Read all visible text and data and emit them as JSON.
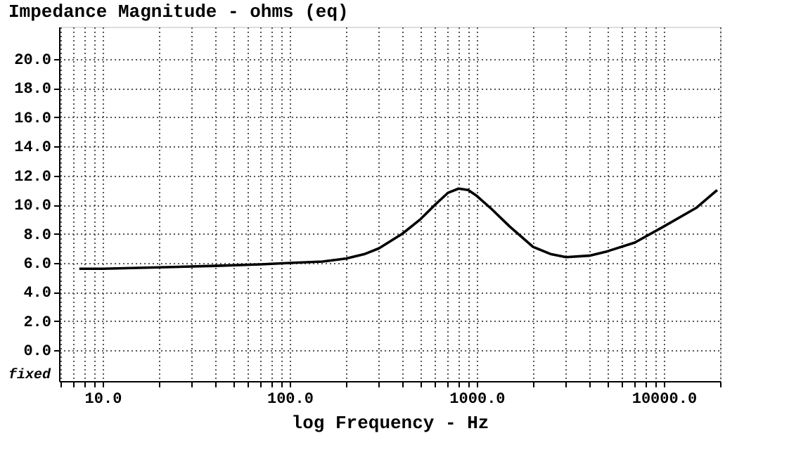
{
  "chart_data": {
    "type": "line",
    "title": "Impedance Magnitude - ohms (eq)",
    "xlabel": "log Frequency - Hz",
    "annotations": [
      "fixed"
    ],
    "log": "x",
    "grid": true,
    "line_style": "solid",
    "marker": "none",
    "xlim": [
      5.85,
      20000
    ],
    "ylim": [
      -2.1,
      22.2
    ],
    "xticks": [
      {
        "value": 6,
        "label": null
      },
      {
        "value": 7,
        "label": null
      },
      {
        "value": 8,
        "label": null
      },
      {
        "value": 9,
        "label": null
      },
      {
        "value": 10,
        "label": "10.0"
      },
      {
        "value": 20,
        "label": null
      },
      {
        "value": 30,
        "label": null
      },
      {
        "value": 40,
        "label": null
      },
      {
        "value": 50,
        "label": null
      },
      {
        "value": 60,
        "label": null
      },
      {
        "value": 70,
        "label": null
      },
      {
        "value": 80,
        "label": null
      },
      {
        "value": 90,
        "label": null
      },
      {
        "value": 100,
        "label": "100.0"
      },
      {
        "value": 200,
        "label": null
      },
      {
        "value": 300,
        "label": null
      },
      {
        "value": 400,
        "label": null
      },
      {
        "value": 500,
        "label": null
      },
      {
        "value": 600,
        "label": null
      },
      {
        "value": 700,
        "label": null
      },
      {
        "value": 800,
        "label": null
      },
      {
        "value": 900,
        "label": null
      },
      {
        "value": 1000,
        "label": "1000.0"
      },
      {
        "value": 2000,
        "label": null
      },
      {
        "value": 3000,
        "label": null
      },
      {
        "value": 4000,
        "label": null
      },
      {
        "value": 5000,
        "label": null
      },
      {
        "value": 6000,
        "label": null
      },
      {
        "value": 7000,
        "label": null
      },
      {
        "value": 8000,
        "label": null
      },
      {
        "value": 9000,
        "label": null
      },
      {
        "value": 10000,
        "label": "10000.0"
      },
      {
        "value": 20000,
        "label": null
      }
    ],
    "yticks": [
      {
        "value": 0,
        "label": "0.0"
      },
      {
        "value": 2,
        "label": "2.0"
      },
      {
        "value": 4,
        "label": "4.0"
      },
      {
        "value": 6,
        "label": "6.0"
      },
      {
        "value": 8,
        "label": "8.0"
      },
      {
        "value": 10,
        "label": "10.0"
      },
      {
        "value": 12,
        "label": "12.0"
      },
      {
        "value": 14,
        "label": "14.0"
      },
      {
        "value": 16,
        "label": "16.0"
      },
      {
        "value": 18,
        "label": "18.0"
      },
      {
        "value": 20,
        "label": "20.0"
      }
    ],
    "x": [
      7.5,
      10,
      20,
      40,
      70,
      100,
      150,
      200,
      250,
      300,
      400,
      500,
      600,
      700,
      800,
      900,
      1000,
      1200,
      1500,
      2000,
      2500,
      3000,
      4000,
      5000,
      7000,
      10000,
      15000,
      19300
    ],
    "series": [
      {
        "color": "#000000",
        "values": [
          5.6,
          5.6,
          5.7,
          5.8,
          5.9,
          6.0,
          6.1,
          6.3,
          6.6,
          7.0,
          8.0,
          9.0,
          10.0,
          10.8,
          11.1,
          11.0,
          10.6,
          9.7,
          8.5,
          7.1,
          6.6,
          6.4,
          6.5,
          6.8,
          7.4,
          8.5,
          9.8,
          11.0
        ]
      }
    ]
  }
}
